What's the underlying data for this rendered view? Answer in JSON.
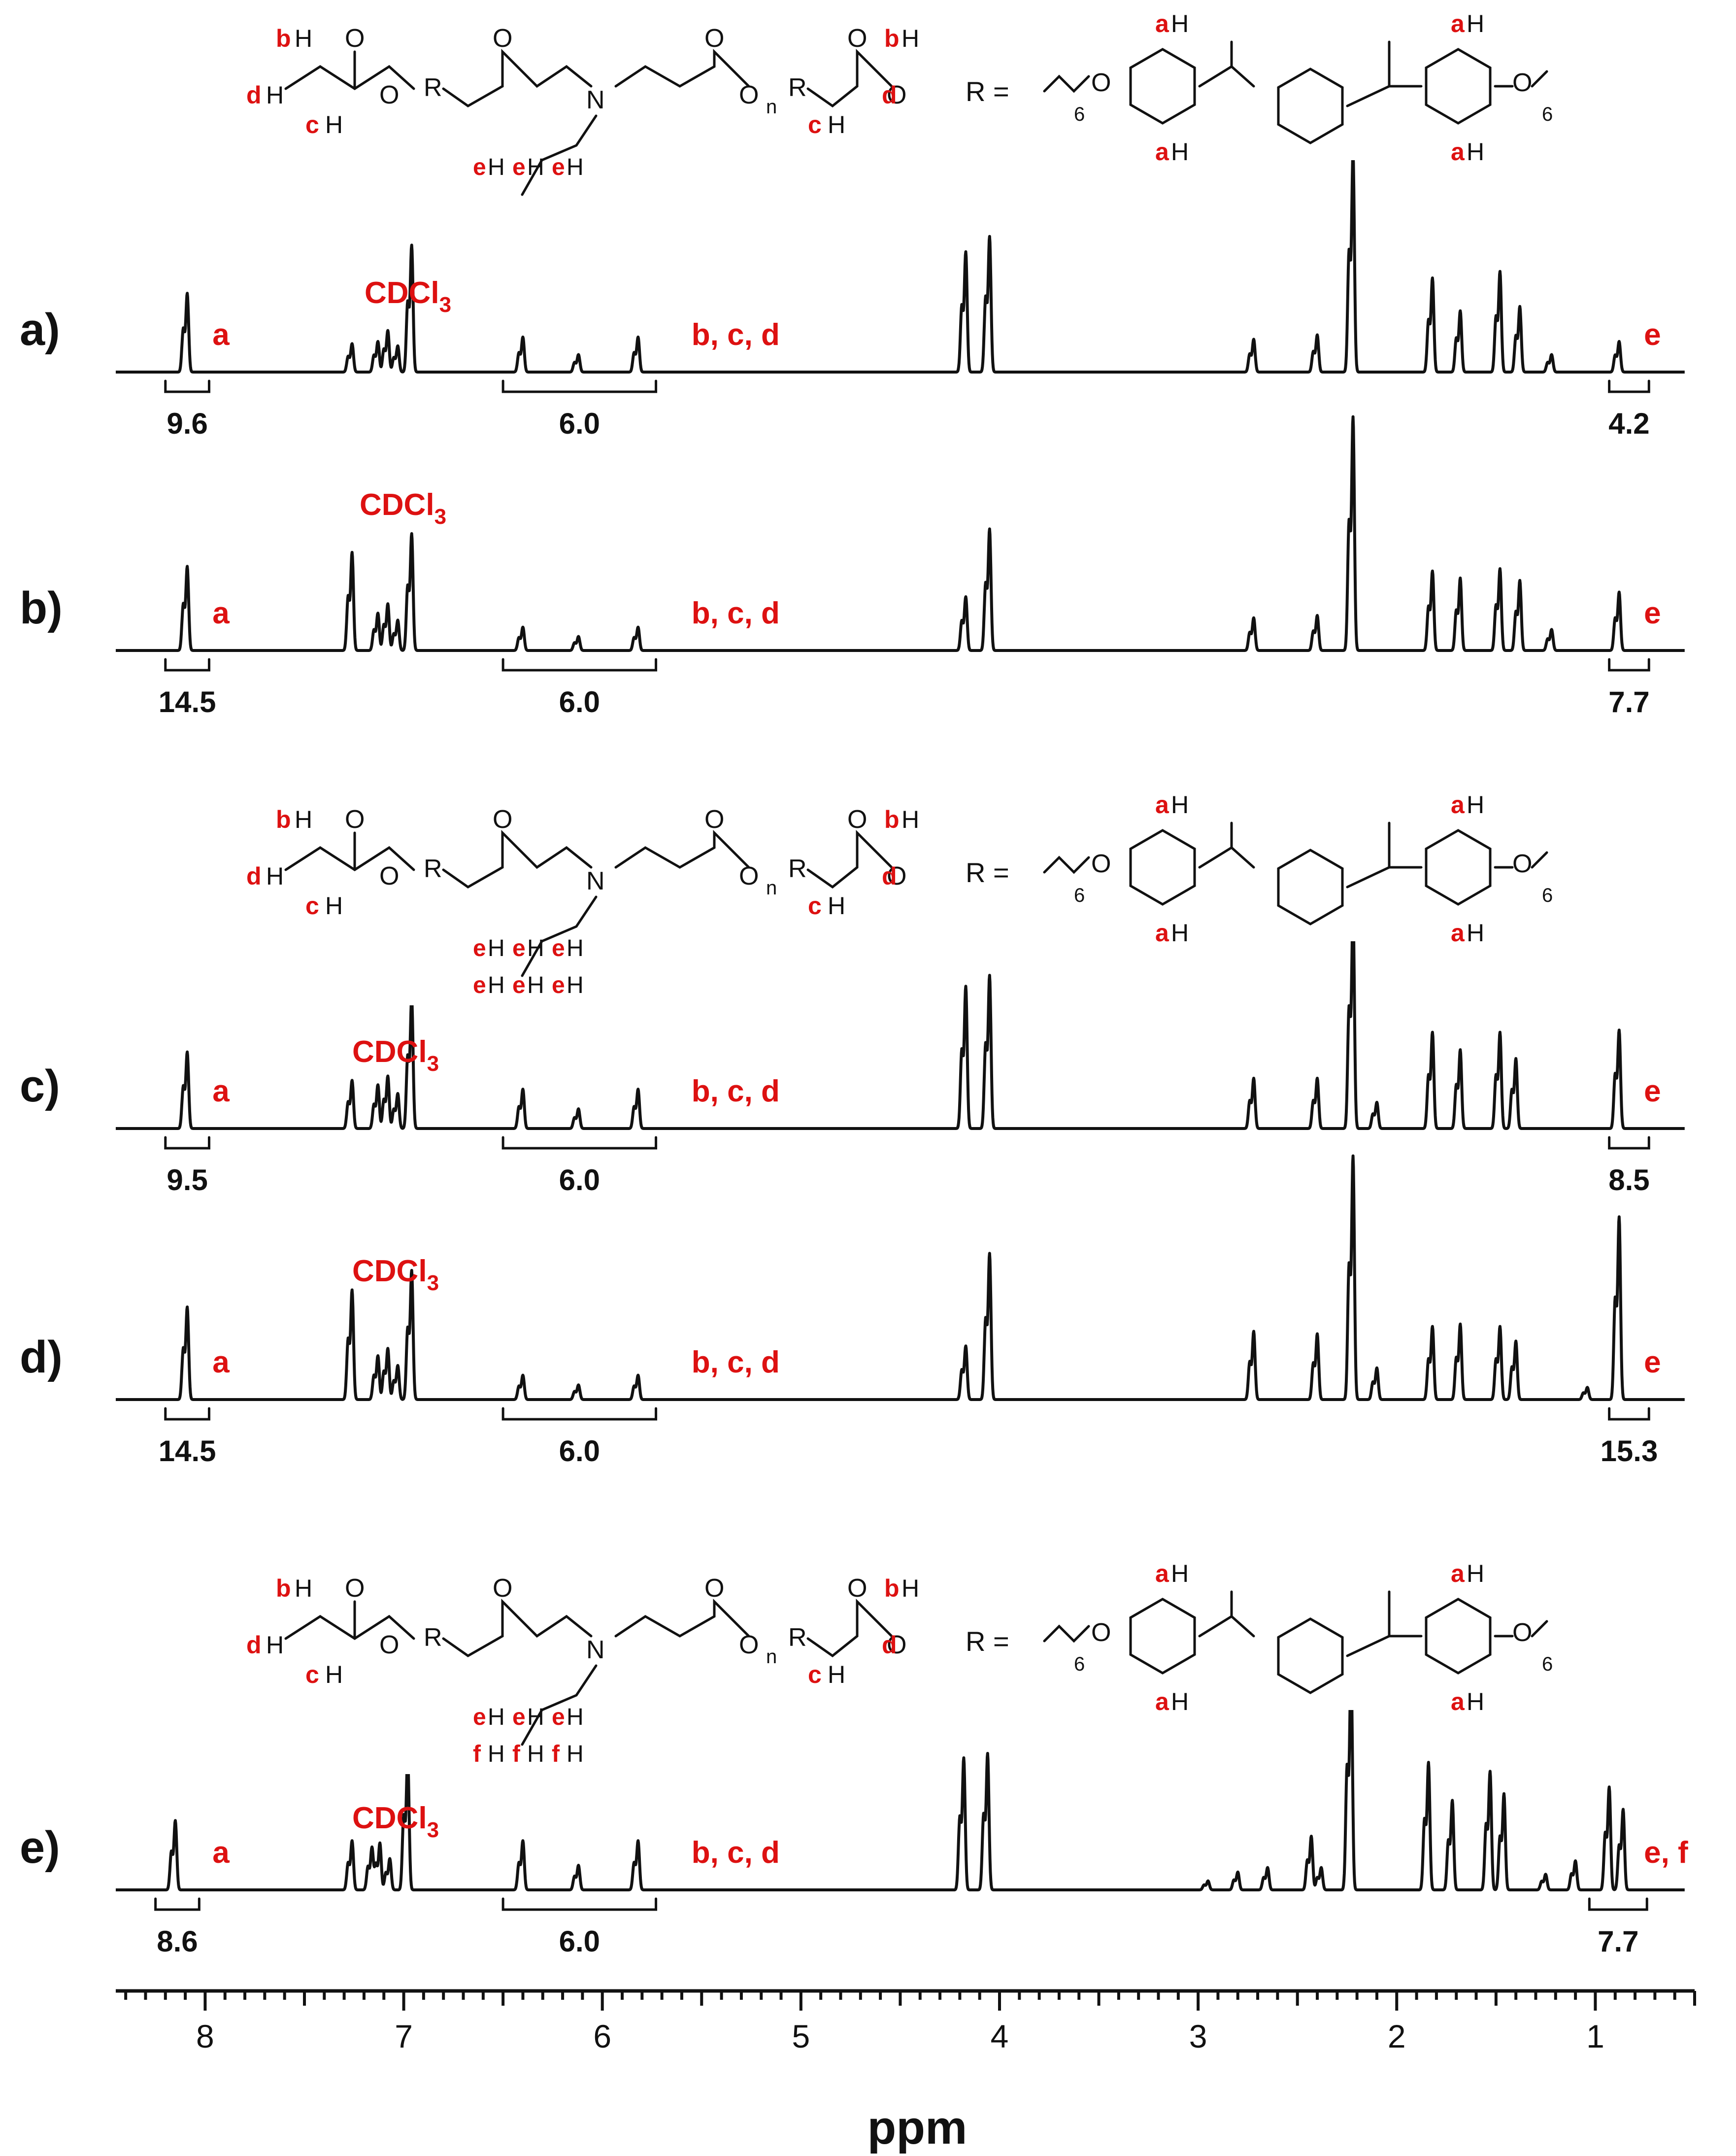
{
  "chart_data": {
    "type": "line",
    "xlabel": "ppm",
    "xlim": [
      8.45,
      0.5
    ],
    "x_ticks": [
      "8",
      "7",
      "6",
      "5",
      "4",
      "3",
      "2",
      "1"
    ],
    "x_tick_values": [
      8,
      7,
      6,
      5,
      4,
      3,
      2,
      1
    ],
    "colors": {
      "trace": "#111111",
      "annotation": "#dd1111",
      "axis": "#111111",
      "inset_background": "#ffffff"
    },
    "panels": [
      {
        "label": "a)",
        "solvent": "CDCl3",
        "peak_labels": [
          {
            "text": "a",
            "ppm": 8.05
          },
          {
            "text": "b, c, d",
            "ppm": 5.65
          },
          {
            "text": "e",
            "ppm": 0.78
          }
        ],
        "integrals": [
          {
            "value": "9.6",
            "from": 8.2,
            "to": 7.98
          },
          {
            "value": "6.0",
            "from": 6.5,
            "to": 5.73
          },
          {
            "value": "4.2",
            "from": 0.93,
            "to": 0.73
          }
        ],
        "peaks": [
          {
            "ppm": 8.09,
            "h": 0.36
          },
          {
            "ppm": 7.26,
            "h": 0.13
          },
          {
            "ppm": 7.13,
            "h": 0.14
          },
          {
            "ppm": 7.08,
            "h": 0.19
          },
          {
            "ppm": 7.03,
            "h": 0.12
          },
          {
            "ppm": 6.96,
            "h": 0.58
          },
          {
            "ppm": 6.4,
            "h": 0.16
          },
          {
            "ppm": 6.12,
            "h": 0.08
          },
          {
            "ppm": 5.82,
            "h": 0.16
          },
          {
            "ppm": 4.17,
            "h": 0.55
          },
          {
            "ppm": 4.05,
            "h": 0.62
          },
          {
            "ppm": 2.72,
            "h": 0.15
          },
          {
            "ppm": 2.4,
            "h": 0.17
          },
          {
            "ppm": 2.22,
            "h": 1.0
          },
          {
            "ppm": 1.82,
            "h": 0.43
          },
          {
            "ppm": 1.68,
            "h": 0.28
          },
          {
            "ppm": 1.48,
            "h": 0.46
          },
          {
            "ppm": 1.38,
            "h": 0.3
          },
          {
            "ppm": 1.22,
            "h": 0.08
          },
          {
            "ppm": 0.88,
            "h": 0.14
          }
        ]
      },
      {
        "label": "b)",
        "solvent": "CDCl3",
        "peak_labels": [
          {
            "text": "a",
            "ppm": 8.05
          },
          {
            "text": "b, c, d",
            "ppm": 5.65
          },
          {
            "text": "e",
            "ppm": 0.78
          }
        ],
        "integrals": [
          {
            "value": "14.5",
            "from": 8.2,
            "to": 7.98
          },
          {
            "value": "6.0",
            "from": 6.5,
            "to": 5.73
          },
          {
            "value": "7.7",
            "from": 0.93,
            "to": 0.73
          }
        ],
        "peaks": [
          {
            "ppm": 8.09,
            "h": 0.36
          },
          {
            "ppm": 7.26,
            "h": 0.42
          },
          {
            "ppm": 7.13,
            "h": 0.16
          },
          {
            "ppm": 7.08,
            "h": 0.2
          },
          {
            "ppm": 7.03,
            "h": 0.13
          },
          {
            "ppm": 6.96,
            "h": 0.5
          },
          {
            "ppm": 6.4,
            "h": 0.1
          },
          {
            "ppm": 6.12,
            "h": 0.06
          },
          {
            "ppm": 5.82,
            "h": 0.1
          },
          {
            "ppm": 4.17,
            "h": 0.23
          },
          {
            "ppm": 4.05,
            "h": 0.52
          },
          {
            "ppm": 2.72,
            "h": 0.14
          },
          {
            "ppm": 2.4,
            "h": 0.15
          },
          {
            "ppm": 2.22,
            "h": 1.0
          },
          {
            "ppm": 1.82,
            "h": 0.34
          },
          {
            "ppm": 1.68,
            "h": 0.31
          },
          {
            "ppm": 1.48,
            "h": 0.35
          },
          {
            "ppm": 1.38,
            "h": 0.3
          },
          {
            "ppm": 1.22,
            "h": 0.09
          },
          {
            "ppm": 0.88,
            "h": 0.25
          }
        ]
      },
      {
        "label": "c)",
        "solvent": "CDCl3",
        "peak_labels": [
          {
            "text": "a",
            "ppm": 8.05
          },
          {
            "text": "b, c, d",
            "ppm": 5.65
          },
          {
            "text": "e",
            "ppm": 0.78
          }
        ],
        "integrals": [
          {
            "value": "9.5",
            "from": 8.2,
            "to": 7.98
          },
          {
            "value": "6.0",
            "from": 6.5,
            "to": 5.73
          },
          {
            "value": "8.5",
            "from": 0.93,
            "to": 0.73
          }
        ],
        "peaks": [
          {
            "ppm": 8.09,
            "h": 0.35
          },
          {
            "ppm": 7.26,
            "h": 0.22
          },
          {
            "ppm": 7.13,
            "h": 0.2
          },
          {
            "ppm": 7.08,
            "h": 0.24
          },
          {
            "ppm": 7.03,
            "h": 0.16
          },
          {
            "ppm": 6.96,
            "h": 0.6
          },
          {
            "ppm": 6.4,
            "h": 0.18
          },
          {
            "ppm": 6.12,
            "h": 0.09
          },
          {
            "ppm": 5.82,
            "h": 0.18
          },
          {
            "ppm": 4.17,
            "h": 0.65
          },
          {
            "ppm": 4.05,
            "h": 0.7
          },
          {
            "ppm": 2.72,
            "h": 0.23
          },
          {
            "ppm": 2.4,
            "h": 0.23
          },
          {
            "ppm": 2.22,
            "h": 1.0
          },
          {
            "ppm": 2.1,
            "h": 0.12
          },
          {
            "ppm": 1.82,
            "h": 0.44
          },
          {
            "ppm": 1.68,
            "h": 0.36
          },
          {
            "ppm": 1.48,
            "h": 0.44
          },
          {
            "ppm": 1.4,
            "h": 0.32
          },
          {
            "ppm": 0.88,
            "h": 0.45
          }
        ]
      },
      {
        "label": "d)",
        "solvent": "CDCl3",
        "peak_labels": [
          {
            "text": "a",
            "ppm": 8.05
          },
          {
            "text": "b, c, d",
            "ppm": 5.65
          },
          {
            "text": "e",
            "ppm": 0.78
          }
        ],
        "integrals": [
          {
            "value": "14.5",
            "from": 8.2,
            "to": 7.98
          },
          {
            "value": "6.0",
            "from": 6.5,
            "to": 5.73
          },
          {
            "value": "15.3",
            "from": 0.93,
            "to": 0.73
          }
        ],
        "peaks": [
          {
            "ppm": 8.09,
            "h": 0.38
          },
          {
            "ppm": 7.26,
            "h": 0.45
          },
          {
            "ppm": 7.13,
            "h": 0.18
          },
          {
            "ppm": 7.08,
            "h": 0.21
          },
          {
            "ppm": 7.03,
            "h": 0.14
          },
          {
            "ppm": 6.96,
            "h": 0.53
          },
          {
            "ppm": 6.4,
            "h": 0.1
          },
          {
            "ppm": 6.12,
            "h": 0.06
          },
          {
            "ppm": 5.82,
            "h": 0.1
          },
          {
            "ppm": 4.17,
            "h": 0.22
          },
          {
            "ppm": 4.05,
            "h": 0.6
          },
          {
            "ppm": 2.72,
            "h": 0.28
          },
          {
            "ppm": 2.4,
            "h": 0.27
          },
          {
            "ppm": 2.22,
            "h": 1.0
          },
          {
            "ppm": 2.1,
            "h": 0.13
          },
          {
            "ppm": 1.82,
            "h": 0.3
          },
          {
            "ppm": 1.68,
            "h": 0.31
          },
          {
            "ppm": 1.48,
            "h": 0.3
          },
          {
            "ppm": 1.4,
            "h": 0.24
          },
          {
            "ppm": 1.04,
            "h": 0.05
          },
          {
            "ppm": 0.88,
            "h": 0.75
          }
        ]
      },
      {
        "label": "e)",
        "solvent": "CDCl3",
        "peak_labels": [
          {
            "text": "a",
            "ppm": 8.05
          },
          {
            "text": "b, c, d",
            "ppm": 5.65
          },
          {
            "text": "e, f",
            "ppm": 0.78
          }
        ],
        "integrals": [
          {
            "value": "8.6",
            "from": 8.25,
            "to": 8.03
          },
          {
            "value": "6.0",
            "from": 6.5,
            "to": 5.73
          },
          {
            "value": "7.7",
            "from": 1.03,
            "to": 0.74
          }
        ],
        "peaks": [
          {
            "ppm": 8.15,
            "h": 0.31
          },
          {
            "ppm": 7.26,
            "h": 0.22
          },
          {
            "ppm": 7.16,
            "h": 0.19
          },
          {
            "ppm": 7.12,
            "h": 0.21
          },
          {
            "ppm": 7.07,
            "h": 0.14
          },
          {
            "ppm": 6.98,
            "h": 0.6
          },
          {
            "ppm": 6.4,
            "h": 0.22
          },
          {
            "ppm": 6.12,
            "h": 0.11
          },
          {
            "ppm": 5.82,
            "h": 0.22
          },
          {
            "ppm": 4.18,
            "h": 0.59
          },
          {
            "ppm": 4.06,
            "h": 0.61
          },
          {
            "ppm": 2.95,
            "h": 0.04
          },
          {
            "ppm": 2.8,
            "h": 0.08
          },
          {
            "ppm": 2.65,
            "h": 0.1
          },
          {
            "ppm": 2.43,
            "h": 0.24
          },
          {
            "ppm": 2.38,
            "h": 0.1
          },
          {
            "ppm": 2.23,
            "h": 1.0
          },
          {
            "ppm": 1.84,
            "h": 0.57
          },
          {
            "ppm": 1.72,
            "h": 0.4
          },
          {
            "ppm": 1.53,
            "h": 0.53
          },
          {
            "ppm": 1.46,
            "h": 0.43
          },
          {
            "ppm": 1.25,
            "h": 0.07
          },
          {
            "ppm": 1.1,
            "h": 0.13
          },
          {
            "ppm": 0.93,
            "h": 0.46
          },
          {
            "ppm": 0.86,
            "h": 0.36
          }
        ]
      }
    ]
  },
  "structures": [
    {
      "R_label": "R =",
      "backbone_labels": {
        "O": "O",
        "N": "N",
        "H": "H",
        "R": "R",
        "n": "n",
        "sub6": "6"
      },
      "proton_letters": {
        "b": "b",
        "c": "c",
        "d": "d",
        "a": "a"
      },
      "substituent_labels": [
        "e",
        "e",
        "e"
      ]
    },
    {
      "R_label": "R =",
      "backbone_labels": {
        "O": "O",
        "N": "N",
        "H": "H",
        "R": "R",
        "n": "n",
        "sub6": "6"
      },
      "proton_letters": {
        "b": "b",
        "c": "c",
        "d": "d",
        "a": "a"
      },
      "substituent_labels": [
        "e",
        "e",
        "e",
        "e",
        "e",
        "e"
      ]
    },
    {
      "R_label": "R =",
      "backbone_labels": {
        "O": "O",
        "N": "N",
        "H": "H",
        "R": "R",
        "n": "n",
        "sub6": "6"
      },
      "proton_letters": {
        "b": "b",
        "c": "c",
        "d": "d",
        "a": "a"
      },
      "substituent_labels": [
        "e",
        "e",
        "e",
        "f",
        "f",
        "f"
      ]
    }
  ]
}
